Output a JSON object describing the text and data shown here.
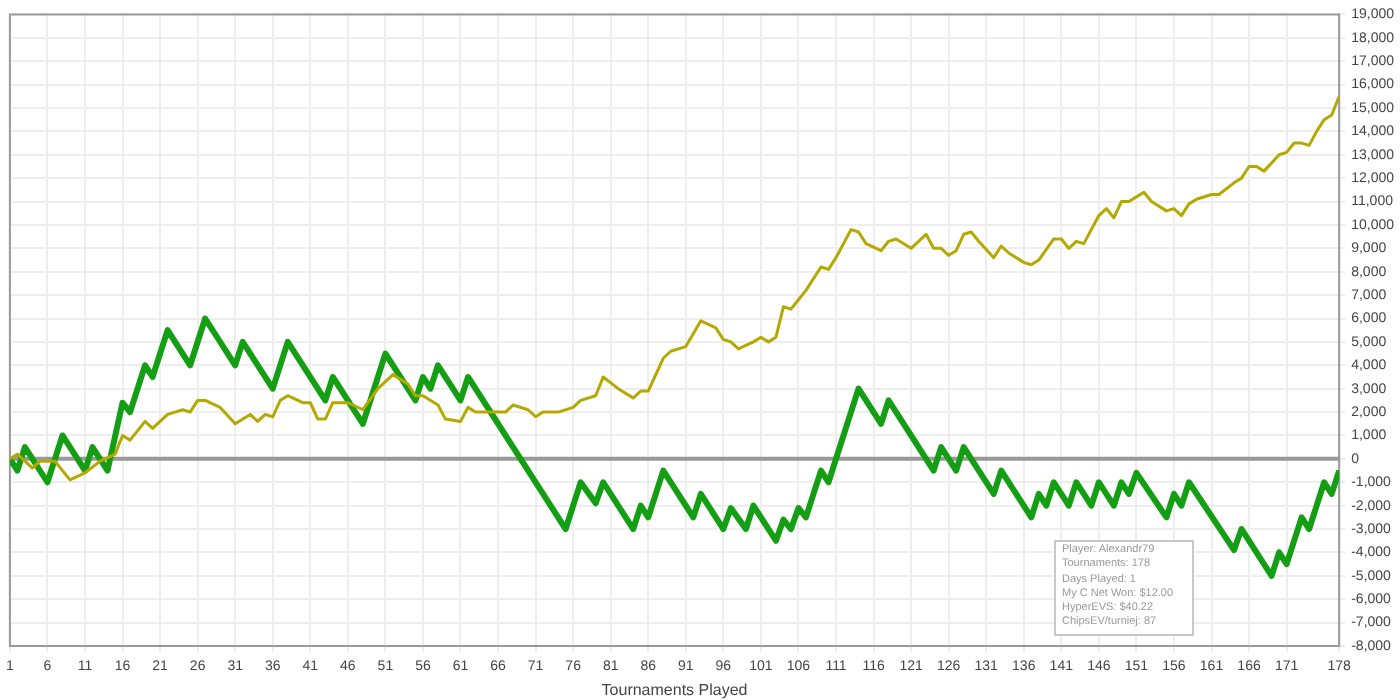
{
  "chart_data": {
    "type": "line",
    "xlabel": "Tournaments Played",
    "xlim": [
      1,
      178
    ],
    "xticks": [
      1,
      6,
      11,
      16,
      21,
      26,
      31,
      36,
      41,
      46,
      51,
      56,
      61,
      66,
      71,
      76,
      81,
      86,
      91,
      96,
      101,
      106,
      111,
      116,
      121,
      126,
      131,
      136,
      141,
      146,
      151,
      156,
      161,
      166,
      171,
      178
    ],
    "ylim": [
      -8000,
      19000
    ],
    "yticks": [
      {
        "value": -8000,
        "label": "-8,000"
      },
      {
        "value": -7000,
        "label": "-7,000"
      },
      {
        "value": -6000,
        "label": "-6,000"
      },
      {
        "value": -5000,
        "label": "-5,000"
      },
      {
        "value": -4000,
        "label": "-4,000"
      },
      {
        "value": -3000,
        "label": "-3,000"
      },
      {
        "value": -2000,
        "label": "-2,000"
      },
      {
        "value": -1000,
        "label": "-1,000"
      },
      0,
      {
        "value": 1000,
        "label": "1,000"
      },
      {
        "value": 2000,
        "label": "2,000"
      },
      {
        "value": 3000,
        "label": "3,000"
      },
      {
        "value": 4000,
        "label": "4,000"
      },
      {
        "value": 5000,
        "label": "5,000"
      },
      {
        "value": 6000,
        "label": "6,000"
      },
      {
        "value": 7000,
        "label": "7,000"
      },
      {
        "value": 8000,
        "label": "8,000"
      },
      {
        "value": 9000,
        "label": "9,000"
      },
      {
        "value": 10000,
        "label": "10,000"
      },
      {
        "value": 11000,
        "label": "11,000"
      },
      {
        "value": 12000,
        "label": "12,000"
      },
      {
        "value": 13000,
        "label": "13,000"
      },
      {
        "value": 14000,
        "label": "14,000"
      },
      {
        "value": 15000,
        "label": "15,000"
      },
      {
        "value": 16000,
        "label": "16,000"
      },
      {
        "value": 17000,
        "label": "17,000"
      },
      {
        "value": 18000,
        "label": "18,000"
      },
      {
        "value": 19000,
        "label": "19,000"
      }
    ],
    "grid": true,
    "legend": false,
    "marker": "none",
    "line_style": "solid",
    "ref_lines": [
      {
        "axis": "y",
        "value": 0,
        "color": "#999999"
      }
    ],
    "annotations": [
      "Player: Alexandr79",
      "Tournaments: 178",
      "Days Played: 1",
      "My C Net Won: $12.00",
      "HyperEVS: $40.22",
      "ChipsEV/turniej: 87"
    ],
    "series": [
      {
        "color": "#b5a800",
        "x": [
          1,
          2,
          3,
          4,
          5,
          7,
          9,
          11,
          13,
          15,
          16,
          17,
          19,
          20,
          22,
          23,
          24,
          25,
          26,
          27,
          29,
          31,
          33,
          34,
          35,
          36,
          37,
          38,
          40,
          41,
          42,
          43,
          44,
          46,
          48,
          50,
          52,
          54,
          55,
          56,
          58,
          59,
          61,
          62,
          63,
          65,
          67,
          68,
          70,
          71,
          72,
          74,
          76,
          77,
          79,
          80,
          82,
          84,
          85,
          86,
          88,
          89,
          91,
          93,
          95,
          96,
          97,
          98,
          100,
          101,
          102,
          103,
          104,
          105,
          106,
          107,
          109,
          110,
          111,
          113,
          114,
          115,
          117,
          118,
          119,
          121,
          123,
          124,
          125,
          126,
          127,
          128,
          129,
          130,
          132,
          133,
          134,
          136,
          137,
          138,
          140,
          141,
          142,
          143,
          144,
          146,
          147,
          148,
          149,
          150,
          152,
          153,
          155,
          156,
          157,
          158,
          159,
          161,
          162,
          164,
          165,
          166,
          167,
          168,
          170,
          171,
          172,
          173,
          174,
          175,
          176,
          177,
          178
        ],
        "values": [
          0,
          200,
          -100,
          -400,
          -100,
          -100,
          -900,
          -600,
          -100,
          200,
          1000,
          800,
          1600,
          1300,
          1900,
          2000,
          2100,
          2000,
          2500,
          2500,
          2200,
          1500,
          1900,
          1600,
          1900,
          1800,
          2500,
          2700,
          2400,
          2400,
          1700,
          1700,
          2400,
          2400,
          2100,
          3000,
          3600,
          3200,
          2700,
          2700,
          2300,
          1700,
          1600,
          2200,
          2000,
          2000,
          2000,
          2300,
          2100,
          1800,
          2000,
          2000,
          2200,
          2500,
          2700,
          3500,
          3000,
          2600,
          2900,
          2900,
          4300,
          4600,
          4800,
          5900,
          5600,
          5100,
          5000,
          4700,
          5000,
          5200,
          5000,
          5200,
          6500,
          6400,
          6800,
          7200,
          8200,
          8100,
          8600,
          9800,
          9700,
          9200,
          8900,
          9300,
          9400,
          9000,
          9600,
          9000,
          9000,
          8700,
          8900,
          9600,
          9700,
          9300,
          8600,
          9100,
          8800,
          8400,
          8300,
          8500,
          9400,
          9400,
          9000,
          9300,
          9200,
          10400,
          10700,
          10300,
          11000,
          11000,
          11400,
          11000,
          10600,
          10700,
          10400,
          10900,
          11100,
          11300,
          11300,
          11800,
          12000,
          12500,
          12500,
          12300,
          13000,
          13100,
          13500,
          13500,
          13400,
          14000,
          14500,
          14700,
          15500
        ]
      },
      {
        "color": "#149e14",
        "x": [
          1,
          2,
          3,
          6,
          8,
          11,
          12,
          14,
          16,
          17,
          19,
          20,
          22,
          25,
          27,
          31,
          32,
          36,
          38,
          43,
          44,
          48,
          51,
          55,
          56,
          57,
          58,
          61,
          62,
          75,
          77,
          79,
          80,
          84,
          85,
          86,
          88,
          92,
          93,
          96,
          97,
          99,
          100,
          103,
          104,
          105,
          106,
          107,
          109,
          110,
          114,
          117,
          118,
          124,
          125,
          127,
          128,
          132,
          133,
          137,
          138,
          139,
          140,
          142,
          143,
          145,
          146,
          148,
          149,
          150,
          151,
          155,
          156,
          157,
          158,
          164,
          165,
          169,
          170,
          171,
          173,
          174,
          176,
          177,
          178
        ],
        "values": [
          0,
          -500,
          500,
          -1000,
          1000,
          -500,
          500,
          -500,
          2400,
          2000,
          4000,
          3500,
          5500,
          4000,
          6000,
          4000,
          5000,
          3000,
          5000,
          2500,
          3500,
          1500,
          4500,
          2500,
          3500,
          3000,
          4000,
          2500,
          3500,
          -3000,
          -1000,
          -1900,
          -1000,
          -3000,
          -2000,
          -2500,
          -500,
          -2500,
          -1500,
          -3000,
          -2100,
          -3000,
          -2000,
          -3500,
          -2600,
          -3000,
          -2100,
          -2500,
          -500,
          -1000,
          3000,
          1500,
          2500,
          -500,
          500,
          -500,
          500,
          -1500,
          -500,
          -2500,
          -1500,
          -2000,
          -1000,
          -2000,
          -1000,
          -2000,
          -1000,
          -2000,
          -1000,
          -1500,
          -600,
          -2500,
          -1500,
          -2000,
          -1000,
          -3900,
          -3000,
          -5000,
          -4000,
          -4500,
          -2500,
          -3000,
          -1000,
          -1500,
          -500
        ]
      }
    ]
  }
}
